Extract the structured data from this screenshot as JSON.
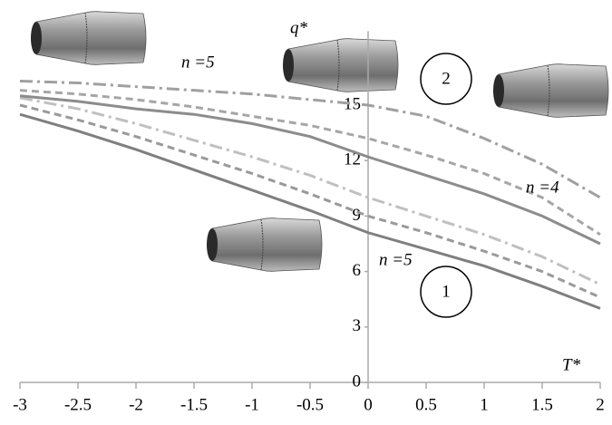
{
  "chart_data": {
    "type": "line",
    "xlabel": "T*",
    "ylabel": "q*",
    "x": [
      -3,
      -2.5,
      -2,
      -1.5,
      -1,
      -0.5,
      0,
      0.5,
      1,
      1.5,
      2
    ],
    "xlim": [
      -3,
      2
    ],
    "xticks": [
      -3,
      -2.5,
      -2,
      -1.5,
      -1,
      -0.5,
      0,
      0.5,
      1,
      1.5,
      2
    ],
    "ylim": [
      0,
      19
    ],
    "yticks": [
      0,
      3,
      6,
      9,
      12,
      15
    ],
    "series": [
      {
        "color": "#7f7f7f",
        "dash": "solid",
        "values": [
          14.5,
          13.6,
          12.6,
          11.5,
          10.4,
          9.3,
          8.1,
          7.2,
          6.3,
          5.2,
          4.0
        ]
      },
      {
        "color": "#9a9a9a",
        "dash": "dashed",
        "values": [
          15.0,
          14.2,
          13.3,
          12.3,
          11.3,
          10.2,
          9.0,
          8.1,
          7.1,
          6.0,
          4.6
        ]
      },
      {
        "color": "#c0c0c0",
        "dash": "dashdot",
        "values": [
          15.4,
          14.8,
          14.0,
          13.1,
          12.2,
          11.2,
          10.0,
          9.0,
          8.0,
          6.8,
          5.3
        ]
      },
      {
        "color": "#8c8c8c",
        "dash": "solid",
        "values": [
          15.5,
          15.2,
          14.8,
          14.5,
          14.0,
          13.3,
          12.2,
          11.2,
          10.2,
          9.0,
          7.5
        ]
      },
      {
        "color": "#a6a6a6",
        "dash": "dashed",
        "values": [
          15.8,
          15.6,
          15.3,
          14.9,
          14.4,
          13.9,
          13.2,
          12.3,
          11.3,
          10.0,
          8.0
        ]
      },
      {
        "color": "#a0a0a0",
        "dash": "dashdot",
        "values": [
          16.3,
          16.2,
          16.0,
          15.8,
          15.6,
          15.3,
          15.0,
          14.4,
          13.2,
          11.8,
          10.0
        ]
      }
    ],
    "annotations": [
      "n =5",
      "n =4",
      "n =5"
    ],
    "circled": [
      "2",
      "1"
    ]
  }
}
